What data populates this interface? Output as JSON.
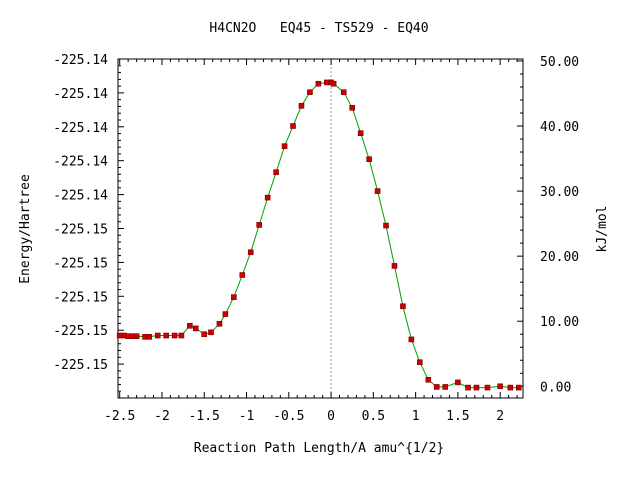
{
  "chart_data": {
    "type": "line",
    "title": "H4CN2O   EQ45 - TS529 - EQ40",
    "xlabel": "Reaction Path Length/A amu^{1/2}",
    "ylabel": "Energy/Hartree",
    "y2label": "kJ/mol",
    "xlim": [
      -2.52,
      2.27
    ],
    "y2lim": [
      -1.8,
      50.3
    ],
    "xticks": [
      "-2.5",
      "-2",
      "-1.5",
      "-1",
      "-0.5",
      "0",
      "0.5",
      "1",
      "1.5",
      "2"
    ],
    "xtick_values": [
      -2.5,
      -2,
      -1.5,
      -1,
      -0.5,
      0,
      0.5,
      1,
      1.5,
      2
    ],
    "yticks_left": [
      "-225.14",
      "-225.14",
      "-225.14",
      "-225.14",
      "-225.14",
      "-225.15",
      "-225.15",
      "-225.15",
      "-225.15",
      "-225.15"
    ],
    "yticks_right": [
      "50.00",
      "40.00",
      "30.00",
      "20.00",
      "10.00",
      "0.00"
    ],
    "yticks_right_values": [
      50,
      40,
      30,
      20,
      10,
      0
    ],
    "ts_marker_x": 0,
    "grid": false,
    "colors": {
      "line": "#00a000",
      "points": "#cc0000",
      "ts_line": "#999999"
    },
    "series": [
      {
        "x": [
          -2.5,
          -2.45,
          -2.4,
          -2.35,
          -2.3,
          -2.2,
          -2.15,
          -2.05,
          -1.95,
          -1.85,
          -1.77,
          -1.67,
          -1.6,
          -1.5,
          -1.42,
          -1.32,
          -1.25,
          -1.15,
          -1.05,
          -0.95,
          -0.85,
          -0.75,
          -0.65,
          -0.55,
          -0.45,
          -0.35,
          -0.25,
          -0.15,
          -0.05,
          0.0,
          0.03,
          0.15,
          0.25,
          0.35,
          0.45,
          0.55,
          0.65,
          0.75,
          0.85,
          0.95,
          1.05,
          1.15,
          1.25,
          1.35,
          1.5,
          1.62,
          1.72,
          1.85,
          2.0,
          2.12,
          2.22
        ],
        "y": [
          7.8,
          7.8,
          7.7,
          7.7,
          7.7,
          7.6,
          7.6,
          7.8,
          7.8,
          7.8,
          7.8,
          9.3,
          8.9,
          8.0,
          8.3,
          9.6,
          11.1,
          13.7,
          17.1,
          20.6,
          24.8,
          29.0,
          32.9,
          36.9,
          40.0,
          43.1,
          45.2,
          46.5,
          46.7,
          46.7,
          46.5,
          45.2,
          42.8,
          38.9,
          34.9,
          30.0,
          24.7,
          18.5,
          12.3,
          7.2,
          3.7,
          1.0,
          -0.1,
          -0.1,
          0.6,
          -0.2,
          -0.2,
          -0.2,
          0.0,
          -0.2,
          -0.2
        ]
      }
    ]
  }
}
